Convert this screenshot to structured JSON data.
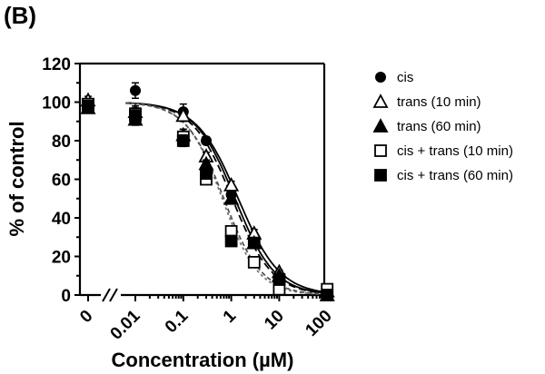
{
  "panel_label": "(B)",
  "chart_data": {
    "type": "scatter",
    "xlabel": "Concentration (µM)",
    "ylabel": "% of control",
    "x_scale": "log",
    "x_tick_labels": [
      "0",
      "0.01",
      "0.1",
      "1",
      "10",
      "100"
    ],
    "y_ticks": [
      0,
      20,
      40,
      60,
      80,
      100,
      120
    ],
    "ylim": [
      0,
      120
    ],
    "x_values": [
      0,
      0.01,
      0.1,
      0.3,
      1,
      3,
      10,
      100
    ],
    "legend_position": "right",
    "series": [
      {
        "name": "cis",
        "marker": "circle-filled",
        "curve": "solid",
        "values": [
          99,
          106,
          95,
          80,
          52,
          28,
          8,
          0
        ],
        "errors": [
          2,
          4,
          4,
          2,
          2,
          2,
          1,
          0
        ]
      },
      {
        "name": "trans (10 min)",
        "marker": "triangle-open",
        "curve": "solid",
        "values": [
          101,
          95,
          93,
          72,
          57,
          32,
          12,
          2
        ],
        "errors": [
          2,
          3,
          3,
          2,
          2,
          2,
          1,
          0
        ]
      },
      {
        "name": "trans (60 min)",
        "marker": "triangle-filled",
        "curve": "dashed",
        "values": [
          97,
          91,
          83,
          68,
          50,
          27,
          10,
          0
        ],
        "errors": [
          2,
          3,
          3,
          2,
          2,
          2,
          1,
          0
        ]
      },
      {
        "name": "cis + trans (10 min)",
        "marker": "square-open",
        "curve": "dotted",
        "values": [
          99,
          94,
          82,
          60,
          33,
          17,
          3,
          3
        ],
        "errors": [
          2,
          3,
          3,
          2,
          2,
          2,
          1,
          0
        ]
      },
      {
        "name": "cis + trans (60 min)",
        "marker": "square-filled",
        "curve": "dotted",
        "values": [
          98,
          93,
          80,
          63,
          28,
          27,
          8,
          0
        ],
        "errors": [
          2,
          3,
          3,
          2,
          2,
          2,
          1,
          0
        ]
      }
    ]
  }
}
